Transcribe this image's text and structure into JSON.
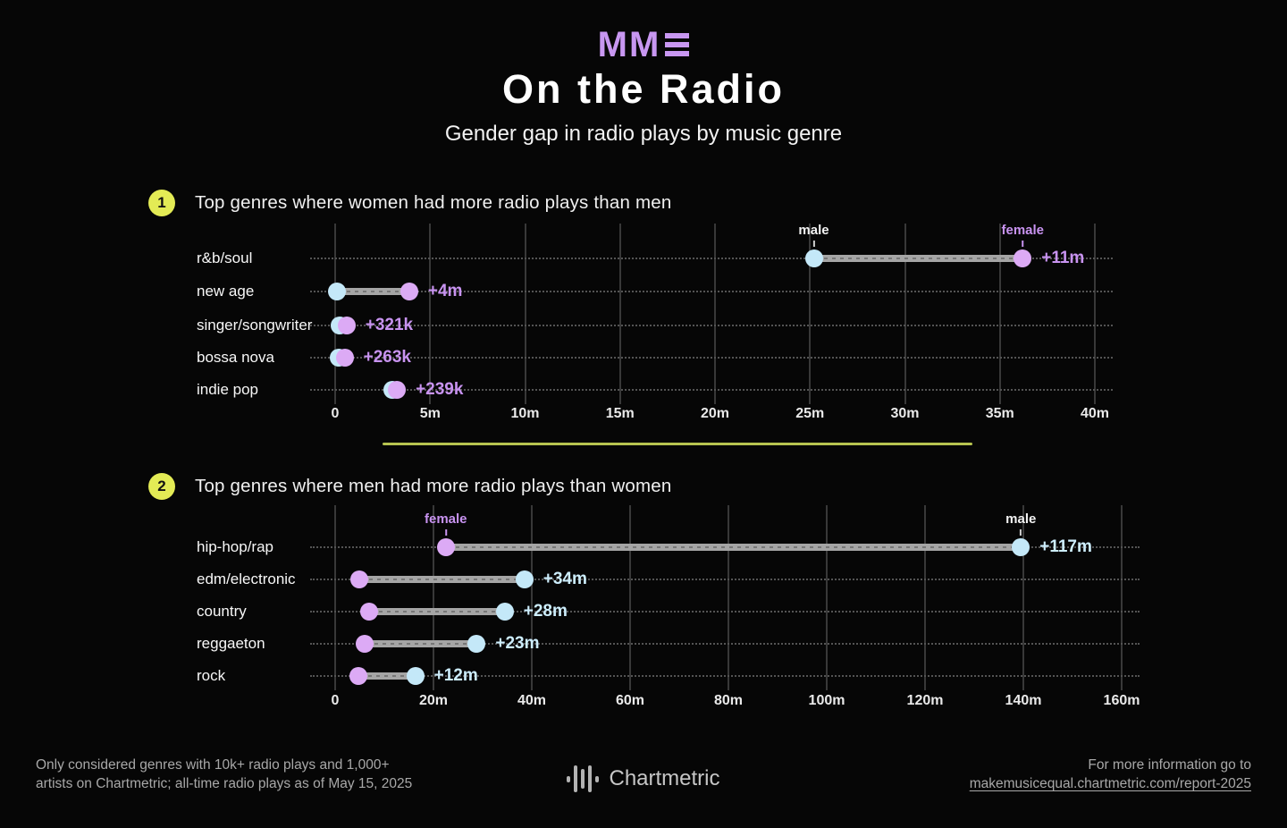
{
  "colors": {
    "bg": "#060606",
    "purple": "#c897f1",
    "purple_dot": "#dcaaf5",
    "purple_text": "#c893f0",
    "blue": "#c4e8f8",
    "blue_text": "#cdeefd",
    "badge": "#e3eb55",
    "divider": "#b6c34f",
    "bar": "#a5a5a5"
  },
  "header": {
    "logo_text": "MM",
    "title": "On the Radio",
    "subtitle": "Gender gap in radio plays by music genre"
  },
  "chart_data": [
    {
      "type": "dumbbell",
      "badge": "1",
      "title": "Top genres where women had more radio plays than men",
      "units": "radio plays (millions)",
      "xlim_m": [
        0,
        40
      ],
      "tick_labels": [
        "0",
        "5m",
        "10m",
        "15m",
        "20m",
        "25m",
        "30m",
        "35m",
        "40m"
      ],
      "legend": {
        "male": "male",
        "female": "female"
      },
      "diff_color": "female",
      "rows": [
        {
          "genre": "r&b/soul",
          "male_m": 25.2,
          "female_m": 36.2,
          "diff_label": "+11m",
          "annotate": true
        },
        {
          "genre": "new age",
          "male_m": 0.1,
          "female_m": 3.9,
          "diff_label": "+4m"
        },
        {
          "genre": "singer/songwriter",
          "male_m": 0.25,
          "female_m": 0.6,
          "diff_label": "+321k"
        },
        {
          "genre": "bossa nova",
          "male_m": 0.2,
          "female_m": 0.5,
          "diff_label": "+263k"
        },
        {
          "genre": "indie pop",
          "male_m": 3.0,
          "female_m": 3.25,
          "diff_label": "+239k"
        }
      ]
    },
    {
      "type": "dumbbell",
      "badge": "2",
      "title": "Top genres where men had more radio plays than women",
      "units": "radio plays (millions)",
      "xlim_m": [
        0,
        160
      ],
      "tick_labels": [
        "0",
        "20m",
        "40m",
        "60m",
        "80m",
        "100m",
        "120m",
        "140m",
        "160m"
      ],
      "legend": {
        "male": "male",
        "female": "female"
      },
      "diff_color": "male",
      "rows": [
        {
          "genre": "hip-hop/rap",
          "male_m": 139.5,
          "female_m": 22.5,
          "diff_label": "+117m",
          "annotate": true
        },
        {
          "genre": "edm/electronic",
          "male_m": 38.5,
          "female_m": 4.9,
          "diff_label": "+34m"
        },
        {
          "genre": "country",
          "male_m": 34.5,
          "female_m": 6.9,
          "diff_label": "+28m"
        },
        {
          "genre": "reggaeton",
          "male_m": 28.8,
          "female_m": 6.0,
          "diff_label": "+23m"
        },
        {
          "genre": "rock",
          "male_m": 16.3,
          "female_m": 4.7,
          "diff_label": "+12m"
        }
      ]
    }
  ],
  "footer": {
    "note_line1": "Only considered genres with 10k+ radio plays and 1,000+",
    "note_line2": "artists on Chartmetric; all-time radio plays as of May 15, 2025",
    "brand": "Chartmetric",
    "info_line1": "For more information go to",
    "info_link": "makemusicequal.chartmetric.com/report-2025"
  }
}
